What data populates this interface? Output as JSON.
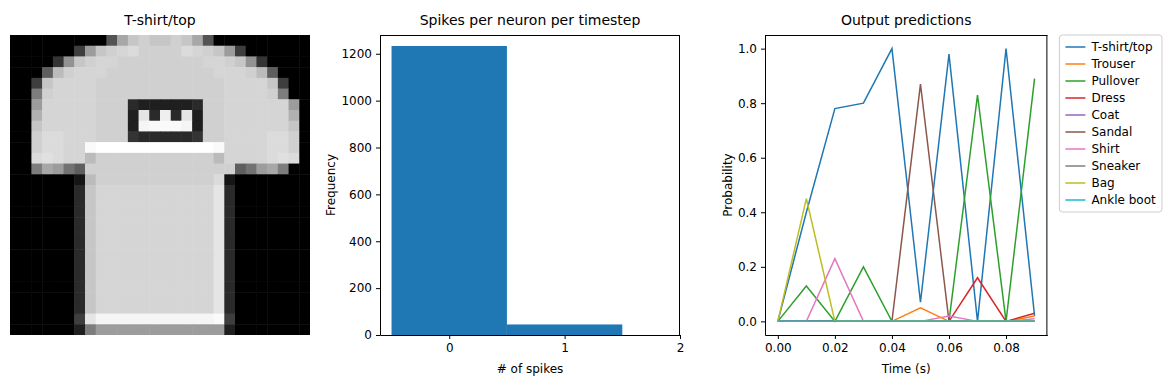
{
  "chart_data": [
    {
      "type": "heatmap",
      "title": "T-shirt/top",
      "color": "gray",
      "tick_labels": false,
      "cells": [
        [
          0,
          0,
          0,
          0,
          0,
          0,
          0,
          0,
          0,
          80,
          160,
          190,
          200,
          190,
          190,
          200,
          190,
          160,
          80,
          0,
          0,
          0,
          0,
          0,
          0,
          0,
          0,
          0
        ],
        [
          0,
          0,
          0,
          0,
          0,
          0,
          60,
          150,
          190,
          200,
          205,
          210,
          200,
          200,
          200,
          200,
          210,
          205,
          200,
          190,
          150,
          60,
          0,
          0,
          0,
          0,
          0,
          0
        ],
        [
          0,
          0,
          0,
          0,
          50,
          140,
          190,
          200,
          205,
          205,
          200,
          200,
          200,
          200,
          200,
          200,
          200,
          200,
          205,
          205,
          200,
          190,
          140,
          50,
          0,
          0,
          0,
          0
        ],
        [
          0,
          0,
          0,
          90,
          180,
          200,
          205,
          205,
          205,
          200,
          200,
          200,
          200,
          200,
          200,
          200,
          200,
          200,
          200,
          205,
          205,
          205,
          200,
          180,
          90,
          0,
          0,
          0
        ],
        [
          0,
          0,
          60,
          190,
          205,
          205,
          205,
          205,
          200,
          200,
          200,
          200,
          200,
          200,
          200,
          200,
          200,
          200,
          200,
          200,
          205,
          205,
          205,
          205,
          190,
          60,
          0,
          0
        ],
        [
          0,
          0,
          120,
          200,
          205,
          205,
          205,
          205,
          200,
          200,
          200,
          200,
          200,
          200,
          200,
          200,
          200,
          200,
          200,
          200,
          205,
          205,
          205,
          205,
          200,
          120,
          0,
          0
        ],
        [
          0,
          0,
          150,
          205,
          205,
          205,
          205,
          205,
          200,
          200,
          200,
          40,
          30,
          30,
          30,
          30,
          30,
          40,
          200,
          200,
          205,
          205,
          205,
          205,
          205,
          205,
          150,
          0
        ],
        [
          0,
          0,
          170,
          205,
          205,
          205,
          205,
          205,
          200,
          200,
          200,
          30,
          220,
          40,
          230,
          40,
          220,
          30,
          200,
          200,
          205,
          205,
          205,
          205,
          205,
          205,
          170,
          0
        ],
        [
          0,
          0,
          190,
          205,
          205,
          205,
          205,
          205,
          200,
          200,
          200,
          30,
          235,
          240,
          240,
          240,
          235,
          30,
          200,
          200,
          205,
          205,
          205,
          205,
          205,
          205,
          190,
          0
        ],
        [
          0,
          0,
          200,
          210,
          210,
          205,
          205,
          205,
          200,
          200,
          200,
          50,
          40,
          40,
          40,
          40,
          40,
          50,
          200,
          200,
          205,
          205,
          205,
          205,
          210,
          210,
          200,
          0
        ],
        [
          0,
          0,
          200,
          210,
          210,
          205,
          205,
          240,
          245,
          245,
          245,
          245,
          245,
          245,
          245,
          245,
          245,
          245,
          245,
          240,
          205,
          205,
          205,
          205,
          210,
          210,
          200,
          0
        ],
        [
          0,
          0,
          210,
          215,
          210,
          205,
          205,
          180,
          200,
          200,
          200,
          200,
          200,
          200,
          200,
          200,
          200,
          200,
          200,
          180,
          205,
          205,
          205,
          205,
          210,
          215,
          210,
          0
        ],
        [
          0,
          0,
          120,
          160,
          150,
          110,
          90,
          200,
          200,
          200,
          200,
          200,
          200,
          200,
          200,
          200,
          200,
          200,
          200,
          200,
          200,
          90,
          110,
          150,
          160,
          120,
          0,
          0
        ],
        [
          0,
          0,
          0,
          0,
          0,
          0,
          20,
          180,
          200,
          200,
          200,
          200,
          200,
          200,
          200,
          200,
          200,
          200,
          200,
          210,
          20,
          0,
          0,
          0,
          0,
          0,
          0,
          0
        ],
        [
          0,
          0,
          0,
          0,
          0,
          0,
          40,
          190,
          205,
          205,
          205,
          205,
          205,
          205,
          205,
          205,
          205,
          205,
          205,
          220,
          40,
          0,
          0,
          0,
          0,
          0,
          0,
          0
        ],
        [
          0,
          0,
          0,
          0,
          0,
          0,
          40,
          190,
          205,
          205,
          205,
          205,
          205,
          205,
          205,
          205,
          205,
          205,
          205,
          220,
          40,
          0,
          0,
          0,
          0,
          0,
          0,
          0
        ],
        [
          0,
          0,
          0,
          0,
          0,
          0,
          40,
          190,
          205,
          205,
          205,
          205,
          205,
          205,
          205,
          205,
          205,
          205,
          205,
          220,
          40,
          0,
          0,
          0,
          0,
          0,
          0,
          0
        ],
        [
          0,
          0,
          0,
          0,
          0,
          0,
          40,
          190,
          205,
          205,
          205,
          205,
          205,
          205,
          205,
          205,
          205,
          205,
          205,
          220,
          40,
          0,
          0,
          0,
          0,
          0,
          0,
          0
        ],
        [
          0,
          0,
          0,
          0,
          0,
          0,
          40,
          190,
          205,
          205,
          205,
          205,
          205,
          205,
          205,
          205,
          205,
          205,
          205,
          220,
          40,
          0,
          0,
          0,
          0,
          0,
          0,
          0
        ],
        [
          0,
          0,
          0,
          0,
          0,
          0,
          40,
          190,
          205,
          205,
          205,
          205,
          205,
          205,
          205,
          205,
          205,
          205,
          205,
          220,
          40,
          0,
          0,
          0,
          0,
          0,
          0,
          0
        ],
        [
          0,
          0,
          0,
          0,
          0,
          0,
          40,
          190,
          205,
          205,
          205,
          205,
          205,
          205,
          205,
          205,
          205,
          205,
          205,
          220,
          40,
          0,
          0,
          0,
          0,
          0,
          0,
          0
        ],
        [
          0,
          0,
          0,
          0,
          0,
          0,
          40,
          190,
          205,
          205,
          205,
          205,
          205,
          205,
          205,
          205,
          205,
          205,
          205,
          220,
          40,
          0,
          0,
          0,
          0,
          0,
          0,
          0
        ],
        [
          0,
          0,
          0,
          0,
          0,
          0,
          40,
          190,
          205,
          205,
          205,
          205,
          205,
          205,
          205,
          205,
          205,
          205,
          205,
          220,
          40,
          0,
          0,
          0,
          0,
          0,
          0,
          0
        ],
        [
          0,
          0,
          0,
          0,
          0,
          0,
          40,
          190,
          205,
          205,
          205,
          205,
          205,
          205,
          205,
          205,
          205,
          205,
          205,
          220,
          40,
          0,
          0,
          0,
          0,
          0,
          0,
          0
        ],
        [
          0,
          0,
          0,
          0,
          0,
          0,
          40,
          190,
          205,
          205,
          205,
          205,
          205,
          205,
          205,
          205,
          205,
          205,
          205,
          220,
          40,
          0,
          0,
          0,
          0,
          0,
          0,
          0
        ],
        [
          0,
          0,
          0,
          0,
          0,
          0,
          40,
          190,
          205,
          205,
          205,
          205,
          205,
          205,
          205,
          205,
          205,
          205,
          205,
          220,
          40,
          0,
          0,
          0,
          0,
          0,
          0,
          0
        ],
        [
          0,
          0,
          0,
          0,
          0,
          0,
          60,
          220,
          235,
          235,
          235,
          235,
          235,
          235,
          235,
          235,
          235,
          235,
          235,
          240,
          60,
          0,
          0,
          0,
          0,
          0,
          0,
          0
        ],
        [
          0,
          0,
          0,
          0,
          0,
          0,
          30,
          120,
          150,
          150,
          150,
          150,
          150,
          150,
          150,
          150,
          150,
          150,
          150,
          150,
          30,
          0,
          0,
          0,
          0,
          0,
          0,
          0
        ]
      ]
    },
    {
      "type": "histogram",
      "title": "Spikes per neuron per timestep",
      "x_label": "# of spikes",
      "y_label": "Frequency",
      "bins": [
        -0.5,
        0.5,
        1.5
      ],
      "counts": [
        1233,
        45
      ],
      "color": "#1f77b4",
      "xlim": [
        -0.6,
        2.0
      ],
      "ylim": [
        0,
        1280
      ],
      "xticks": [
        0,
        1,
        2
      ],
      "yticks": [
        0,
        200,
        400,
        600,
        800,
        1000,
        1200
      ]
    },
    {
      "type": "line",
      "title": "Output predictions",
      "x_label": "Time (s)",
      "y_label": "Probability",
      "x": [
        0,
        0.01,
        0.02,
        0.03,
        0.04,
        0.05,
        0.06,
        0.07,
        0.08,
        0.09
      ],
      "series": [
        {
          "name": "T-shirt/top",
          "color": "#1f77b4",
          "values": [
            0,
            0.4,
            0.78,
            0.8,
            1.0,
            0.07,
            0.98,
            0.0,
            1.0,
            0.02
          ]
        },
        {
          "name": "Trouser",
          "color": "#ff7f0e",
          "values": [
            0,
            0,
            0,
            0,
            0,
            0.05,
            0,
            0,
            0,
            0.02
          ]
        },
        {
          "name": "Pullover",
          "color": "#2ca02c",
          "values": [
            0,
            0.13,
            0,
            0.2,
            0,
            0,
            0,
            0.83,
            0,
            0.89
          ]
        },
        {
          "name": "Dress",
          "color": "#d62728",
          "values": [
            0,
            0,
            0,
            0,
            0,
            0,
            0,
            0.16,
            0,
            0.03
          ]
        },
        {
          "name": "Coat",
          "color": "#9467bd",
          "values": [
            0,
            0,
            0,
            0,
            0,
            0,
            0,
            0,
            0,
            0
          ]
        },
        {
          "name": "Sandal",
          "color": "#8c564b",
          "values": [
            0,
            0,
            0,
            0,
            0,
            0.87,
            0,
            0,
            0,
            0
          ]
        },
        {
          "name": "Shirt",
          "color": "#e377c2",
          "values": [
            0,
            0,
            0.23,
            0,
            0,
            0,
            0.02,
            0,
            0,
            0.01
          ]
        },
        {
          "name": "Sneaker",
          "color": "#7f7f7f",
          "values": [
            0,
            0,
            0,
            0,
            0,
            0,
            0,
            0,
            0,
            0
          ]
        },
        {
          "name": "Bag",
          "color": "#bcbd22",
          "values": [
            0,
            0.45,
            0,
            0,
            0,
            0,
            0,
            0,
            0,
            0
          ]
        },
        {
          "name": "Ankle boot",
          "color": "#17becf",
          "values": [
            0,
            0,
            0,
            0,
            0,
            0,
            0,
            0,
            0,
            0
          ]
        }
      ],
      "xlim": [
        -0.0045,
        0.0945
      ],
      "ylim": [
        -0.05,
        1.05
      ],
      "xticks": [
        {
          "value": 0,
          "label": "0.00"
        },
        0.02,
        0.04,
        0.06,
        0.08
      ],
      "yticks": [
        {
          "value": 0,
          "label": "0.0"
        },
        0.2,
        0.4,
        0.6,
        0.8,
        {
          "value": 1,
          "label": "1.0"
        }
      ],
      "legend": "right"
    }
  ]
}
